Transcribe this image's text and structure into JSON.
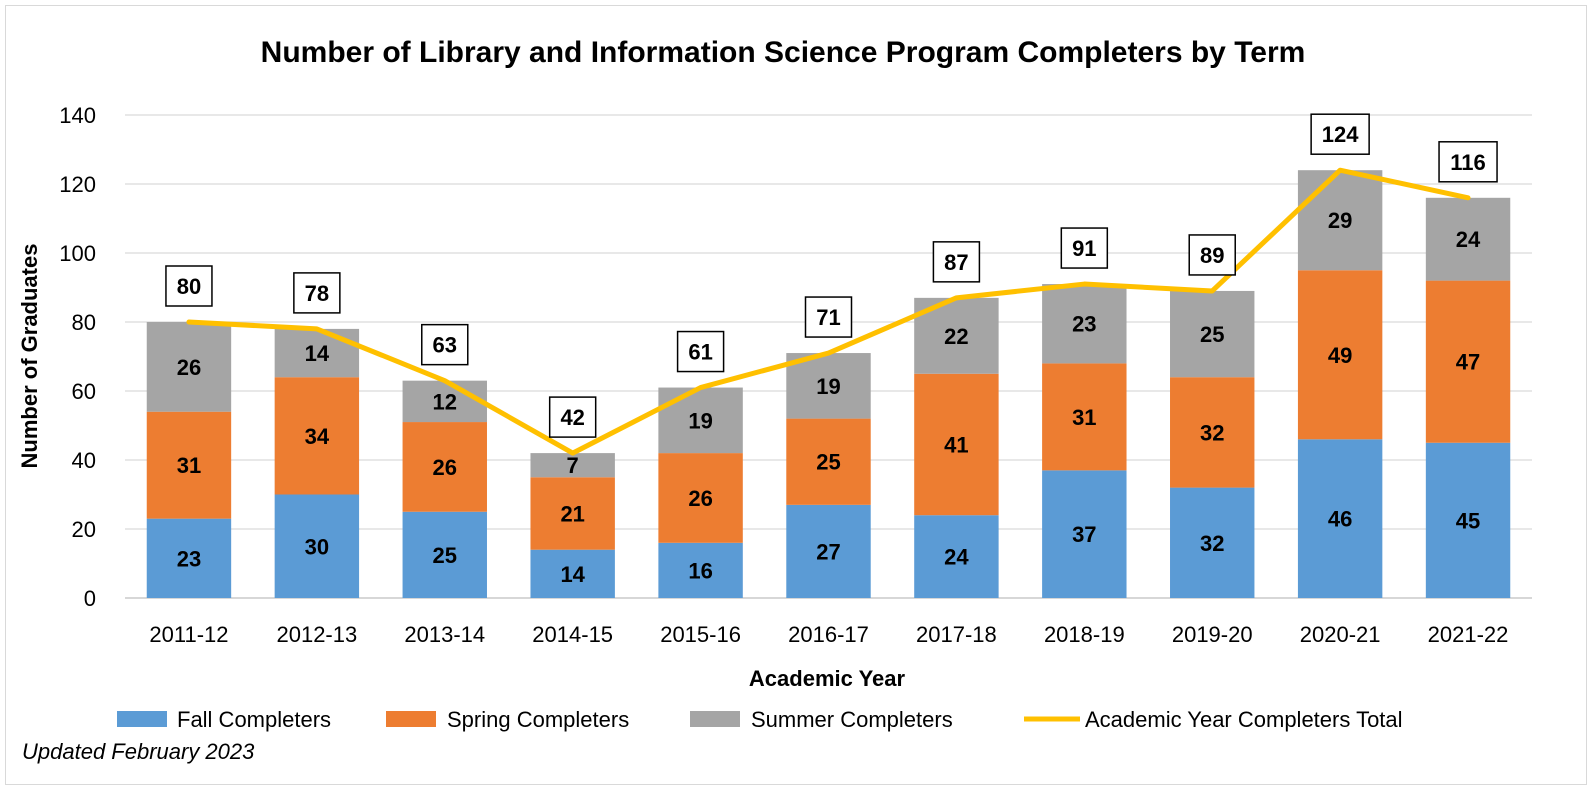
{
  "chart_data": {
    "type": "bar",
    "stacked": true,
    "title": "Number of Library and Information Science Program Completers by Term",
    "xlabel": "Academic Year",
    "ylabel": "Number of Graduates",
    "ylim": [
      0,
      140
    ],
    "yticks": [
      0,
      20,
      40,
      60,
      80,
      100,
      120,
      140
    ],
    "grid": true,
    "legend_position": "bottom",
    "categories": [
      "2011-12",
      "2012-13",
      "2013-14",
      "2014-15",
      "2015-16",
      "2016-17",
      "2017-18",
      "2018-19",
      "2019-20",
      "2020-21",
      "2021-22"
    ],
    "series": [
      {
        "name": "Fall Completers",
        "type": "bar",
        "color": "#5b9bd5",
        "values": [
          23,
          30,
          25,
          14,
          16,
          27,
          24,
          37,
          32,
          46,
          45
        ]
      },
      {
        "name": "Spring Completers",
        "type": "bar",
        "color": "#ed7d31",
        "values": [
          31,
          34,
          26,
          21,
          26,
          25,
          41,
          31,
          32,
          49,
          47
        ]
      },
      {
        "name": "Summer Completers",
        "type": "bar",
        "color": "#a5a5a5",
        "values": [
          26,
          14,
          12,
          7,
          19,
          19,
          22,
          23,
          25,
          29,
          24
        ]
      },
      {
        "name": "Academic Year Completers Total",
        "type": "line",
        "color": "#ffc000",
        "values": [
          80,
          78,
          63,
          42,
          61,
          71,
          87,
          91,
          89,
          124,
          116
        ]
      }
    ],
    "note": "Updated February 2023"
  }
}
